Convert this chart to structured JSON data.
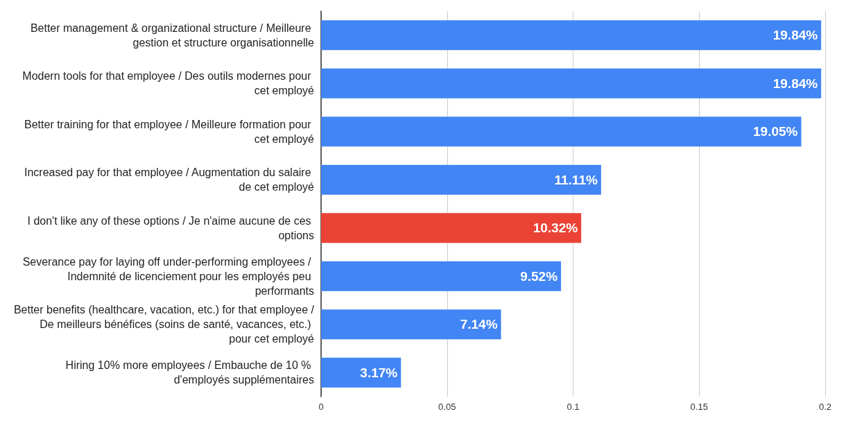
{
  "chart_data": {
    "type": "bar",
    "orientation": "horizontal",
    "categories": [
      "Better management & organizational structure / Meilleure gestion et structure organisationnelle",
      "Modern tools for that employee / Des outils modernes pour cet employé",
      "Better training for that employee / Meilleure formation pour cet employé",
      "Increased pay for that employee / Augmentation du salaire de cet employé",
      "I don't like any of these options / Je n'aime aucune de ces options",
      "Severance pay for laying off under-performing employees / Indemnité de licenciement pour les employés peu performants",
      "Better benefits (healthcare, vacation, etc.) for that employee / De meilleurs bénéfices (soins de santé, vacances, etc.) pour cet employé",
      "Hiring 10% more employees / Embauche de 10 % d'employés supplémentaires"
    ],
    "values": [
      0.1984,
      0.1984,
      0.1905,
      0.1111,
      0.1032,
      0.0952,
      0.0714,
      0.0317
    ],
    "value_labels": [
      "19.84%",
      "19.84%",
      "19.05%",
      "11.11%",
      "10.32%",
      "9.52%",
      "7.14%",
      "3.17%"
    ],
    "colors": [
      "#4285f4",
      "#4285f4",
      "#4285f4",
      "#4285f4",
      "#ea4335",
      "#4285f4",
      "#4285f4",
      "#4285f4"
    ],
    "xlim": [
      0,
      0.2
    ],
    "xticks": [
      0,
      0.05,
      0.1,
      0.15,
      0.2
    ],
    "grid": "x"
  }
}
